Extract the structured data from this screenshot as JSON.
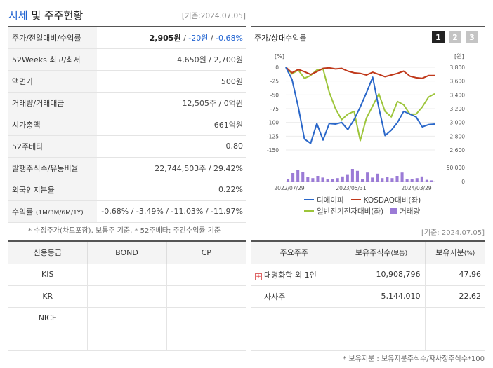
{
  "header": {
    "title_accent": "시세",
    "title_rest": " 및 주주현황",
    "base_date": "[기준:2024.07.05]"
  },
  "summary": {
    "price_label": "주가/전일대비/수익률",
    "price": "2,905원",
    "sep1": " / ",
    "change": "-20원",
    "sep2": " / ",
    "change_pct": "-0.68%",
    "rows": [
      {
        "label": "52Weeks 최고/최저",
        "value": "4,650원 / 2,700원"
      },
      {
        "label": "액면가",
        "value": "500원"
      },
      {
        "label": "거래량/거래대금",
        "value": "12,505주 / 0억원"
      },
      {
        "label": "시가총액",
        "value": "661억원"
      },
      {
        "label": "52주베타",
        "value": "0.80"
      },
      {
        "label": "발행주식수/유동비율",
        "value": "22,744,503주 / 29.42%"
      },
      {
        "label": "외국인지분율",
        "value": "0.22%"
      }
    ],
    "returns_label": "수익률",
    "returns_period": "(1M/3M/6M/1Y)",
    "returns_value": "-0.68% / -3.49% / -11.03% / -11.97%"
  },
  "notes": {
    "note1": "* 수정주가(차트포함), 보통주 기준, * 52주베타: 주간수익률 기준",
    "base_date2": "[기준: 2024.07.05]",
    "note2": "* 보유지분 : 보유지분주식수/자사정주식수*100"
  },
  "chart_panel": {
    "title": "주가/상대수익률",
    "tabs": [
      "1",
      "2",
      "3"
    ]
  },
  "chart_data": {
    "type": "line",
    "left_unit": "[%]",
    "right_unit": "[원]",
    "left_ticks": [
      "0",
      "-25",
      "-50",
      "-75",
      "-100",
      "-125",
      "-150"
    ],
    "right_ticks": [
      "3,800",
      "3,600",
      "3,400",
      "3,200",
      "3,000",
      "2,800",
      "2,600"
    ],
    "left_range": [
      -150,
      0
    ],
    "volume_ticks": [
      "50,000",
      "0"
    ],
    "volume_range": [
      0,
      50000
    ],
    "x_labels": [
      "2022/07/29",
      "2023/05/31",
      "2024/03/29"
    ],
    "colors": {
      "stock": "#2a67c9",
      "kosdaq": "#c0391b",
      "sector": "#9dc53a",
      "volume": "#9b7bd6"
    },
    "series": [
      {
        "name": "디에이피",
        "values": [
          0,
          -22,
          -72,
          -130,
          -138,
          -102,
          -132,
          -102,
          -103,
          -100,
          -113,
          -95,
          -72,
          -46,
          -18,
          -74,
          -124,
          -114,
          -100,
          -80,
          -85,
          -90,
          -108,
          -104,
          -103
        ]
      },
      {
        "name": "KOSDAQ대비(좌)",
        "values": [
          0,
          -10,
          -4,
          -8,
          -13,
          -8,
          -2,
          -1,
          -3,
          -2,
          -7,
          -10,
          -11,
          -14,
          -9,
          -13,
          -17,
          -14,
          -11,
          -7,
          -16,
          -19,
          -20,
          -15,
          -15
        ]
      },
      {
        "name": "일반전기전자대비(좌)",
        "values": [
          0,
          -12,
          -5,
          -20,
          -15,
          -5,
          -3,
          -45,
          -75,
          -95,
          -85,
          -80,
          -133,
          -92,
          -70,
          -48,
          -80,
          -90,
          -62,
          -68,
          -85,
          -85,
          -72,
          -54,
          -48
        ]
      }
    ],
    "volume": {
      "name": "거래량",
      "values": [
        8000,
        30000,
        40000,
        35000,
        16000,
        12000,
        20000,
        14000,
        10000,
        8000,
        12000,
        18000,
        26000,
        45000,
        38000,
        10000,
        32000,
        14000,
        28000,
        12000,
        16000,
        12000,
        20000,
        32000,
        10000,
        8000,
        12000,
        18000,
        6000,
        4000
      ]
    }
  },
  "credit": {
    "headers": [
      "신용등급",
      "BOND",
      "CP"
    ],
    "rows": [
      [
        "KIS",
        "",
        ""
      ],
      [
        "KR",
        "",
        ""
      ],
      [
        "NICE",
        "",
        ""
      ],
      [
        "",
        "",
        ""
      ]
    ]
  },
  "holders": {
    "headers": [
      "주요주주",
      "보유주식수",
      "(보통)",
      "보유지분",
      "(%)"
    ],
    "rows": [
      {
        "name": "대명화학 외 1인",
        "shares": "10,908,796",
        "pct": "47.96"
      },
      {
        "name": "자사주",
        "shares": "5,144,010",
        "pct": "22.62"
      },
      {
        "name": "",
        "shares": "",
        "pct": ""
      },
      {
        "name": "",
        "shares": "",
        "pct": ""
      }
    ]
  }
}
